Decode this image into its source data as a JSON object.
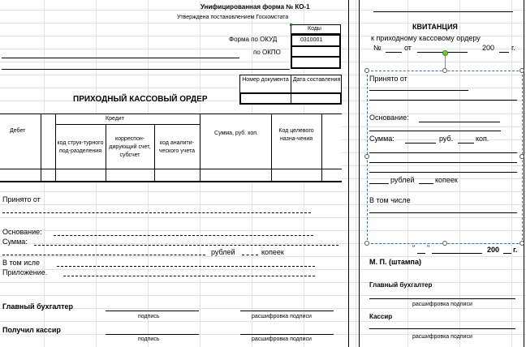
{
  "header": {
    "form_title": "Унифицированная форма № КО-1",
    "approved": "Утверждена постановлением Госкомстата",
    "codes_label": "Коды",
    "okud_label": "Форма по ОКУД",
    "okud_value": "0310001",
    "okpo_label": "по ОКПО"
  },
  "doc": {
    "number_label": "Номер документа",
    "date_label": "Дата составления",
    "title": "ПРИХОДНЫЙ КАССОВЫЙ ОРДЕР"
  },
  "table": {
    "debet": "Дебет",
    "kredit": "Кредит",
    "col_struct": "код струк-турного под-разделения",
    "col_corr": "корреспон-дирующий счет, субсчет",
    "col_anal": "код аналити-ческого учета",
    "col_sum": "Сумма, руб. коп.",
    "col_purpose": "Код целевого назна-чения"
  },
  "body": {
    "received_from": "Принято от",
    "basis": "Основание:",
    "sum": "Сумма:",
    "rubles": "рублей",
    "kopecks": "копеек",
    "including": "В том исле",
    "attachment": "Приложение."
  },
  "signatures": {
    "chief_accountant": "Главный бухгалтер",
    "signature": "подпись",
    "decoding": "расшифровка подписи",
    "received_cashier": "Получил кассир"
  },
  "receipt": {
    "title": "КВИТАНЦИЯ",
    "subtitle": "к приходному кассовому ордеру",
    "number_sign": "№",
    "from": "от",
    "year": "200",
    "year_suffix": "г.",
    "received_from": "Принято от",
    "basis": "Основание:",
    "sum": "Сумма:",
    "rub_dot": "руб.",
    "kop_dot": "коп.",
    "rubles": "рублей",
    "kopecks": "копеек",
    "including": "В том числе",
    "date_quote_open": "\"",
    "date_quote_close": "\"",
    "stamp": "М. П. (штампа)",
    "chief_accountant": "Главный бухгалтер",
    "decoding1": "расшифровка подписи",
    "cashier": "Кассир",
    "decoding2": "расшифровка подписи"
  }
}
